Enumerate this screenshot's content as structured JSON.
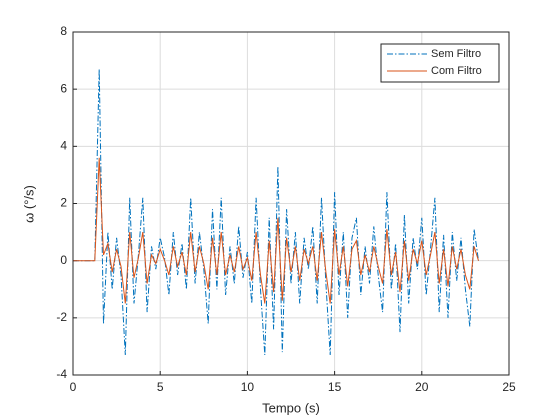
{
  "chart_data": {
    "type": "line",
    "xlabel": "Tempo (s)",
    "ylabel": "ω (°/s)",
    "x": [
      0,
      1.25,
      1.5,
      1.75,
      2.0,
      2.25,
      2.5,
      2.75,
      3.0,
      3.25,
      3.5,
      3.75,
      4.0,
      4.25,
      4.5,
      4.75,
      5.0,
      5.25,
      5.5,
      5.75,
      6.0,
      6.25,
      6.5,
      6.75,
      7.0,
      7.25,
      7.5,
      7.75,
      8.0,
      8.25,
      8.5,
      8.75,
      9.0,
      9.25,
      9.5,
      9.75,
      10.0,
      10.25,
      10.5,
      10.75,
      11.0,
      11.25,
      11.5,
      11.75,
      12.0,
      12.25,
      12.5,
      12.75,
      13.0,
      13.25,
      13.5,
      13.75,
      14.0,
      14.25,
      14.5,
      14.75,
      15.0,
      15.25,
      15.5,
      15.75,
      16.0,
      16.25,
      16.5,
      16.75,
      17.0,
      17.25,
      17.5,
      17.75,
      18.0,
      18.25,
      18.5,
      18.75,
      19.0,
      19.25,
      19.5,
      19.75,
      20.0,
      20.25,
      20.5,
      20.75,
      21.0,
      21.25,
      21.5,
      21.75,
      22.0,
      22.25,
      22.5,
      22.75,
      23.0,
      23.25
    ],
    "series": [
      {
        "name": "Sem Filtro",
        "color": "#0072bd",
        "dash": true,
        "values": [
          0,
          0,
          6.7,
          -2.2,
          1.0,
          -1.0,
          0.8,
          -0.5,
          -3.3,
          2.2,
          -1.5,
          0.2,
          2.2,
          -1.8,
          0.5,
          -0.3,
          0.8,
          0.1,
          -1.2,
          1.0,
          -0.5,
          0.6,
          -1.0,
          2.2,
          -0.8,
          1.0,
          -0.3,
          -2.2,
          1.8,
          -1.0,
          2.2,
          -1.2,
          0.5,
          -0.8,
          1.2,
          -0.6,
          0.3,
          -1.5,
          2.2,
          -1.0,
          -3.3,
          1.5,
          -2.4,
          3.3,
          -3.2,
          1.8,
          -0.8,
          1.0,
          -1.5,
          0.8,
          -0.3,
          1.2,
          -1.5,
          2.2,
          -0.8,
          -3.3,
          2.4,
          -1.2,
          1.0,
          -2.0,
          0.8,
          1.5,
          -1.2,
          0.5,
          -0.8,
          1.2,
          -0.5,
          -1.8,
          2.4,
          -1.0,
          0.6,
          -2.5,
          1.6,
          -1.5,
          0.8,
          -0.3,
          1.5,
          -1.2,
          0.4,
          2.2,
          -1.8,
          0.9,
          -2.0,
          1.0,
          -0.7,
          0.8,
          -1.0,
          -2.3,
          1.1,
          0
        ]
      },
      {
        "name": "Com Filtro",
        "color": "#d95319",
        "dash": false,
        "values": [
          0,
          0,
          3.6,
          0.2,
          0.6,
          -0.4,
          0.4,
          -0.2,
          -1.5,
          1.0,
          -0.6,
          0.1,
          1.0,
          -0.8,
          0.2,
          -0.1,
          0.4,
          0.0,
          -0.5,
          0.5,
          -0.2,
          0.3,
          -0.5,
          1.0,
          -0.4,
          0.5,
          -0.1,
          -1.0,
          0.8,
          -0.5,
          1.0,
          -0.5,
          0.2,
          -0.4,
          0.5,
          -0.3,
          0.1,
          -0.7,
          1.0,
          -0.5,
          -1.5,
          0.7,
          -1.1,
          1.5,
          -1.4,
          0.8,
          -0.4,
          0.5,
          -0.7,
          0.4,
          -0.1,
          0.5,
          -0.7,
          1.0,
          -0.4,
          -1.5,
          1.1,
          -0.5,
          0.5,
          -0.9,
          0.4,
          0.7,
          -0.5,
          0.2,
          -0.4,
          0.5,
          -0.2,
          -0.8,
          1.1,
          -0.5,
          0.3,
          -1.1,
          0.7,
          -0.7,
          0.4,
          -0.1,
          0.7,
          -0.5,
          0.2,
          1.0,
          -0.8,
          0.4,
          -0.9,
          0.5,
          -0.3,
          0.4,
          -0.5,
          -1.0,
          0.5,
          0
        ]
      }
    ],
    "xlim": [
      0,
      25
    ],
    "xticks": [
      0,
      5,
      10,
      15,
      20,
      25
    ],
    "ylim": [
      -4,
      8
    ],
    "yticks": [
      -4,
      -2,
      0,
      2,
      4,
      6,
      8
    ],
    "grid": true,
    "legend": "top-right"
  }
}
